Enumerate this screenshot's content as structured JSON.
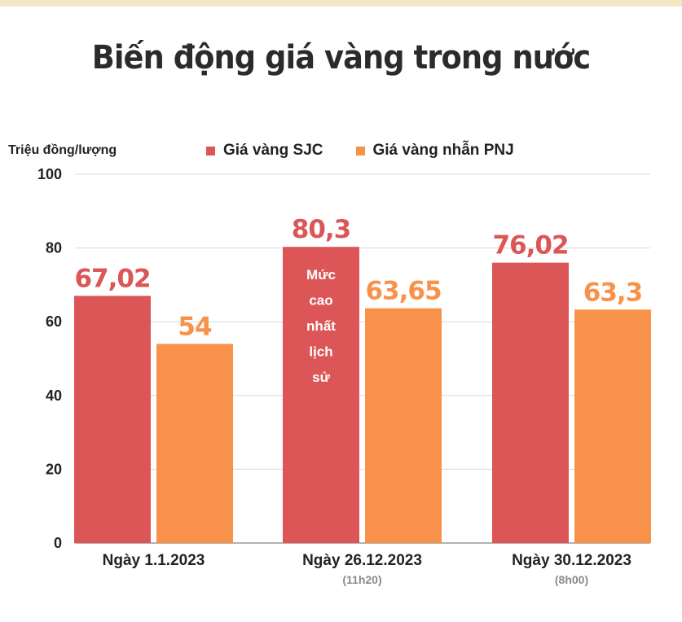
{
  "chart_data": {
    "type": "bar",
    "title": "Biến động giá vàng trong nước",
    "ylabel": "Triệu đồng/lượng",
    "ylim": [
      0,
      100
    ],
    "yticks": [
      0,
      20,
      40,
      60,
      80,
      100
    ],
    "grid": true,
    "legend_position": "top",
    "categories": [
      "Ngày 1.1.2023",
      "Ngày 26.12.2023",
      "Ngày 30.12.2023"
    ],
    "category_notes": [
      "",
      "(11h20)",
      "(8h00)"
    ],
    "series": [
      {
        "name": "Giá vàng SJC",
        "color": "#dc5657",
        "values": [
          67.02,
          80.3,
          76.02
        ],
        "labels": [
          "67,02",
          "80,3",
          "76,02"
        ]
      },
      {
        "name": "Giá vàng nhẫn PNJ",
        "color": "#f8924b",
        "values": [
          54,
          63.65,
          63.3
        ],
        "labels": [
          "54",
          "63,65",
          "63,3"
        ]
      }
    ],
    "annotation": {
      "category_index": 1,
      "series_index": 0,
      "lines": [
        "Mức",
        "cao",
        "nhất",
        "lịch",
        "sử"
      ]
    }
  }
}
